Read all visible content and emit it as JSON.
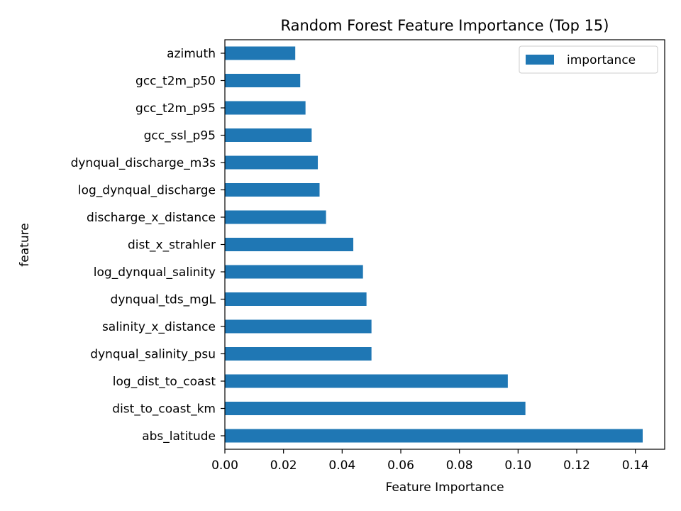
{
  "chart_data": {
    "type": "bar",
    "orientation": "horizontal",
    "title": "Random Forest Feature Importance (Top 15)",
    "xlabel": "Feature Importance",
    "ylabel": "feature",
    "xlim": [
      0.0,
      0.15
    ],
    "xticks": [
      0.0,
      0.02,
      0.04,
      0.06,
      0.08,
      0.1,
      0.12,
      0.14
    ],
    "xtick_labels": [
      "0.00",
      "0.02",
      "0.04",
      "0.06",
      "0.08",
      "0.10",
      "0.12",
      "0.14"
    ],
    "grid": false,
    "legend_position": "top-right",
    "bar_color": "#1f77b4",
    "categories": [
      "abs_latitude",
      "dist_to_coast_km",
      "log_dist_to_coast",
      "dynqual_salinity_psu",
      "salinity_x_distance",
      "dynqual_tds_mgL",
      "log_dynqual_salinity",
      "dist_x_strahler",
      "discharge_x_distance",
      "log_dynqual_discharge",
      "dynqual_discharge_m3s",
      "gcc_ssl_p95",
      "gcc_t2m_p95",
      "gcc_t2m_p50",
      "azimuth"
    ],
    "series": [
      {
        "name": "importance",
        "values": [
          0.1425,
          0.1025,
          0.0965,
          0.05,
          0.05,
          0.0483,
          0.0471,
          0.0438,
          0.0345,
          0.0323,
          0.0317,
          0.0296,
          0.0275,
          0.0257,
          0.024
        ]
      }
    ]
  }
}
